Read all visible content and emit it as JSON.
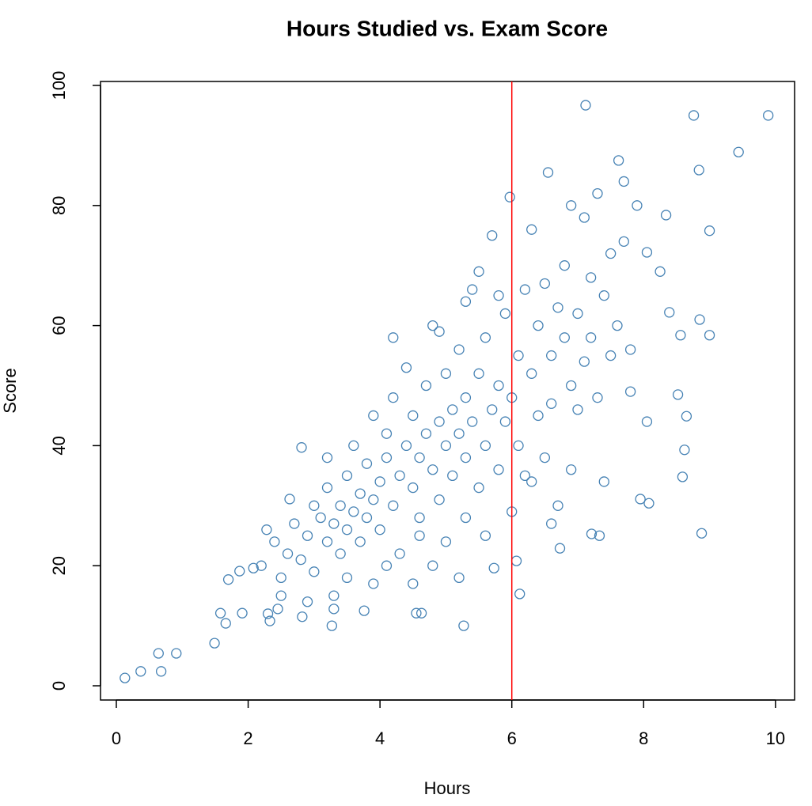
{
  "chart_data": {
    "type": "scatter",
    "title": "Hours Studied vs. Exam Score",
    "x_label": "Hours",
    "y_label": "Score",
    "color": "#4682b4",
    "vline": 6,
    "vline_color": "#ff0000",
    "xlim": [
      -0.24,
      10.29
    ],
    "ylim": [
      -2.37,
      100.66
    ],
    "xticks": [
      0,
      2,
      4,
      6,
      8,
      10
    ],
    "yticks": [
      0,
      20,
      40,
      60,
      80,
      100
    ],
    "x": [
      0.13,
      0.37,
      0.64,
      0.68,
      0.91,
      1.49,
      1.58,
      1.66,
      1.7,
      1.91,
      1.87,
      2.08,
      2.28,
      2.33,
      2.45,
      2.63,
      2.81,
      2.82,
      3.27,
      3.76,
      4.55,
      4.63,
      5.27,
      7.12,
      8.76,
      9.89,
      9.44,
      8.84,
      7.62,
      6.55,
      5.97,
      9.0,
      8.34,
      8.05,
      8.25,
      8.39,
      8.85,
      9.0,
      8.56,
      8.52,
      8.65,
      8.05,
      8.62,
      8.59,
      7.95,
      8.08,
      8.88,
      7.33,
      7.21,
      6.73,
      6.12,
      6.07,
      5.73,
      2.2,
      2.4,
      2.5,
      2.6,
      2.7,
      2.8,
      2.9,
      3.0,
      3.0,
      3.1,
      3.2,
      3.2,
      3.3,
      3.3,
      3.4,
      3.4,
      3.5,
      3.5,
      3.6,
      3.6,
      3.7,
      3.7,
      3.8,
      3.8,
      3.9,
      3.9,
      4.0,
      4.0,
      4.1,
      4.1,
      4.2,
      4.2,
      4.3,
      4.3,
      4.4,
      4.4,
      4.5,
      4.5,
      4.6,
      4.6,
      4.7,
      4.7,
      4.8,
      4.8,
      4.9,
      4.9,
      5.0,
      5.0,
      5.1,
      5.1,
      5.2,
      5.2,
      5.3,
      5.3,
      5.4,
      5.4,
      5.5,
      5.5,
      5.6,
      5.6,
      5.7,
      5.7,
      5.8,
      5.8,
      5.9,
      5.9,
      6.0,
      6.0,
      6.1,
      6.1,
      6.2,
      6.2,
      6.3,
      6.3,
      6.4,
      6.4,
      6.5,
      6.5,
      6.6,
      6.6,
      6.7,
      6.7,
      6.8,
      6.8,
      6.9,
      6.9,
      7.0,
      7.0,
      7.1,
      7.1,
      7.2,
      7.2,
      7.3,
      7.3,
      7.4,
      7.4,
      7.5,
      7.5,
      7.6,
      7.7,
      7.8,
      7.9,
      7.8,
      7.7,
      6.9,
      5.5,
      5.2,
      4.5,
      4.1,
      3.9,
      3.5,
      3.3,
      2.9,
      2.5,
      2.3,
      4.6,
      5.0,
      5.6,
      6.3,
      6.6,
      5.3,
      4.8,
      3.2,
      4.2,
      4.9,
      5.3,
      5.8
    ],
    "values": [
      1.3,
      2.4,
      5.4,
      2.4,
      5.4,
      7.1,
      12.1,
      10.4,
      17.7,
      12.1,
      19.1,
      19.6,
      26.0,
      10.8,
      12.8,
      31.1,
      39.7,
      11.5,
      10.0,
      12.5,
      12.1,
      12.1,
      10.0,
      96.7,
      95.0,
      95.0,
      88.9,
      85.9,
      87.5,
      85.5,
      81.4,
      75.8,
      78.4,
      72.2,
      69.0,
      62.2,
      61.0,
      58.4,
      58.4,
      48.5,
      44.9,
      44.0,
      39.3,
      34.8,
      31.1,
      30.4,
      25.4,
      25.0,
      25.3,
      22.9,
      15.3,
      20.8,
      19.6,
      20,
      24,
      18,
      22,
      27,
      21,
      25,
      30,
      19,
      28,
      24,
      33,
      27,
      15,
      30,
      22,
      35,
      26,
      29,
      40,
      32,
      24,
      37,
      28,
      45,
      31,
      34,
      26,
      38,
      42,
      30,
      48,
      35,
      22,
      40,
      53,
      33,
      45,
      38,
      28,
      42,
      50,
      36,
      60,
      44,
      31,
      40,
      52,
      46,
      35,
      56,
      42,
      38,
      48,
      66,
      44,
      52,
      33,
      40,
      58,
      46,
      75,
      50,
      36,
      62,
      44,
      48,
      29,
      55,
      40,
      66,
      35,
      52,
      76,
      45,
      60,
      38,
      67,
      55,
      47,
      63,
      30,
      58,
      70,
      50,
      36,
      62,
      46,
      78,
      54,
      68,
      58,
      82,
      48,
      65,
      34,
      72,
      55,
      60,
      74,
      56,
      80,
      49,
      84,
      80,
      69,
      18,
      17,
      20,
      17,
      18,
      12.8,
      14,
      15,
      12,
      25,
      24,
      25,
      34,
      27,
      28,
      20,
      38,
      58,
      59,
      64,
      65
    ]
  }
}
